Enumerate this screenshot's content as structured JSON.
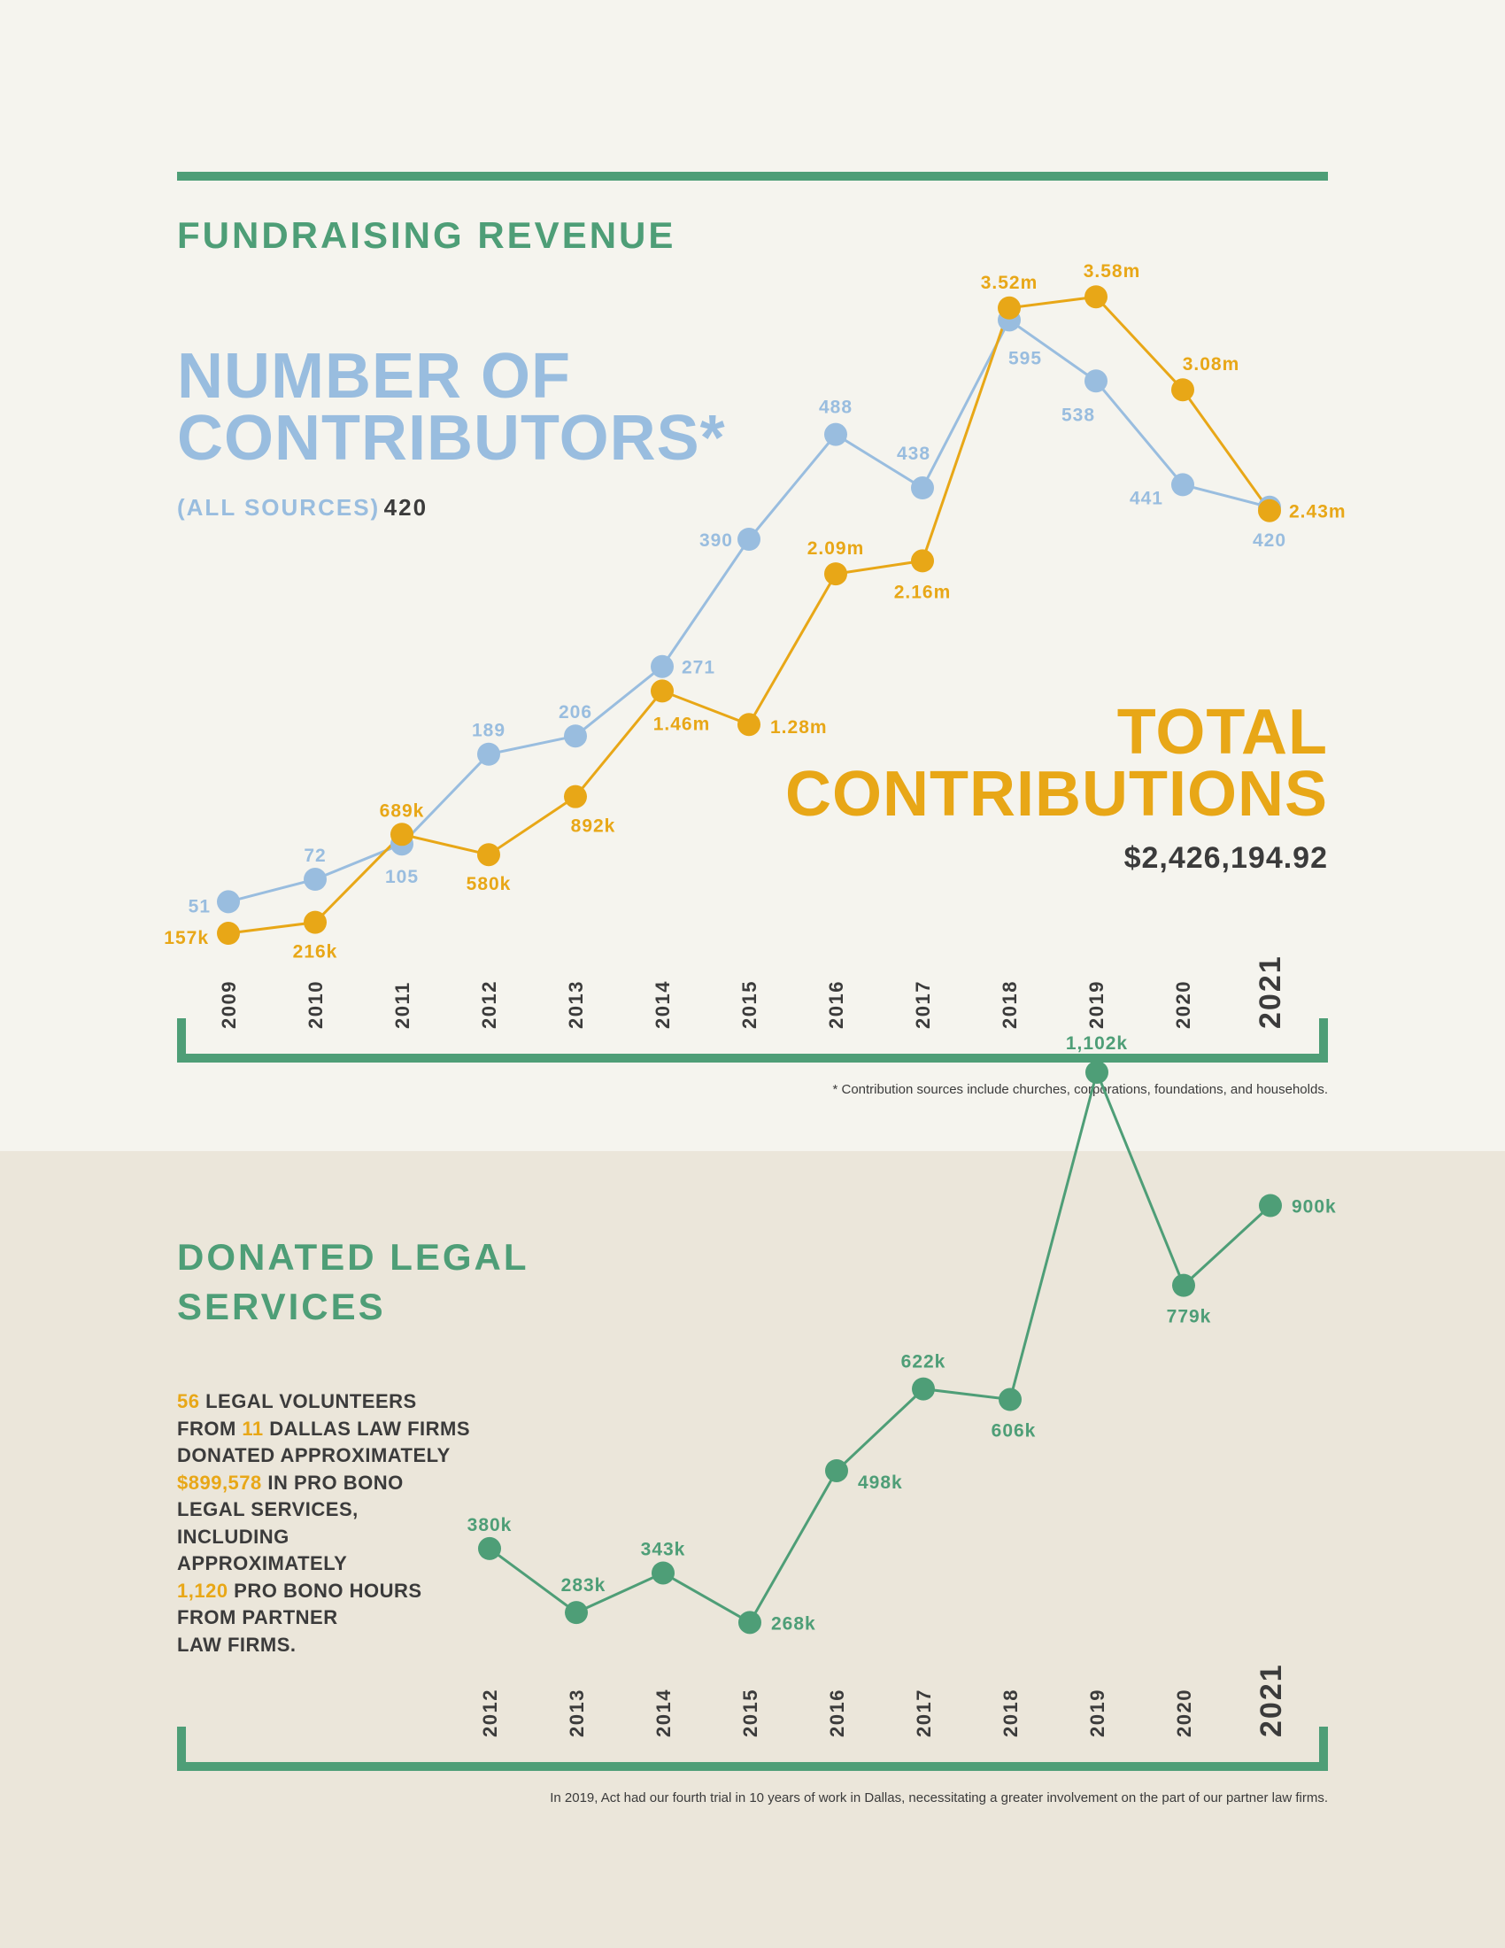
{
  "fundraising": {
    "heading": "FUNDRAISING REVENUE",
    "contributors_title_line1": "NUMBER OF",
    "contributors_title_line2": "CONTRIBUTORS*",
    "contributors_sub_label": "(ALL SOURCES)",
    "contributors_sub_value": "420",
    "total_title_line1": "TOTAL",
    "total_title_line2": "CONTRIBUTIONS",
    "total_value": "$2,426,194.92",
    "footnote": "* Contribution sources include churches, corporations, foundations, and households."
  },
  "legal": {
    "heading_line1": "DONATED LEGAL",
    "heading_line2": "SERVICES",
    "body": [
      {
        "text": "56",
        "hl": true
      },
      {
        "text": " LEGAL VOLUNTEERS",
        "hl": false
      },
      {
        "br": true
      },
      {
        "text": "FROM ",
        "hl": false
      },
      {
        "text": "11",
        "hl": true
      },
      {
        "text": " DALLAS LAW FIRMS",
        "hl": false
      },
      {
        "br": true
      },
      {
        "text": "DONATED APPROXIMATELY",
        "hl": false
      },
      {
        "br": true
      },
      {
        "text": "$899,578",
        "hl": true
      },
      {
        "text": " IN PRO BONO",
        "hl": false
      },
      {
        "br": true
      },
      {
        "text": "LEGAL SERVICES,",
        "hl": false
      },
      {
        "br": true
      },
      {
        "text": "INCLUDING",
        "hl": false
      },
      {
        "br": true
      },
      {
        "text": "APPROXIMATELY",
        "hl": false
      },
      {
        "br": true
      },
      {
        "text": "1,120",
        "hl": true
      },
      {
        "text": " PRO BONO HOURS",
        "hl": false
      },
      {
        "br": true
      },
      {
        "text": "FROM PARTNER",
        "hl": false
      },
      {
        "br": true
      },
      {
        "text": "LAW FIRMS.",
        "hl": false
      }
    ],
    "footnote": "In 2019, Act had our fourth trial in 10 years of work in Dallas, necessitating a greater involvement on the part of our partner law firms."
  },
  "colors": {
    "green": "#4e9e77",
    "blue": "#99bddf",
    "orange": "#e8a717",
    "dark": "#3b3b3b"
  },
  "chart_data": [
    {
      "type": "line",
      "title": "FUNDRAISING REVENUE",
      "categories": [
        "2009",
        "2010",
        "2011",
        "2012",
        "2013",
        "2014",
        "2015",
        "2016",
        "2017",
        "2018",
        "2019",
        "2020",
        "2021"
      ],
      "highlight_category": "2021",
      "series": [
        {
          "name": "NUMBER OF CONTRIBUTORS*",
          "color": "#99bddf",
          "values": [
            51,
            72,
            105,
            189,
            206,
            271,
            390,
            488,
            438,
            595,
            538,
            441,
            420
          ],
          "labels": [
            "51",
            "72",
            "105",
            "189",
            "206",
            "271",
            "390",
            "488",
            "438",
            "595",
            "538",
            "441",
            "420"
          ],
          "ylim": [
            0,
            650
          ]
        },
        {
          "name": "TOTAL CONTRIBUTIONS",
          "color": "#e8a717",
          "values": [
            157000,
            216000,
            689000,
            580000,
            892000,
            1460000,
            1280000,
            2090000,
            2160000,
            3520000,
            3580000,
            3080000,
            2430000
          ],
          "labels": [
            "157k",
            "216k",
            "689k",
            "580k",
            "892k",
            "1.46m",
            "1.28m",
            "2.09m",
            "2.16m",
            "3.52m",
            "3.58m",
            "3.08m",
            "2.43m"
          ],
          "ylim": [
            0,
            4000000
          ]
        }
      ]
    },
    {
      "type": "line",
      "title": "DONATED LEGAL SERVICES",
      "categories": [
        "2012",
        "2013",
        "2014",
        "2015",
        "2016",
        "2017",
        "2018",
        "2019",
        "2020",
        "2021"
      ],
      "highlight_category": "2021",
      "series": [
        {
          "name": "Donated legal services",
          "color": "#4e9e77",
          "values": [
            380000,
            283000,
            343000,
            268000,
            498000,
            622000,
            606000,
            1102000,
            779000,
            900000
          ],
          "labels": [
            "380k",
            "283k",
            "343k",
            "268k",
            "498k",
            "622k",
            "606k",
            "1,102k",
            "779k",
            "900k"
          ],
          "ylim": [
            0,
            1200000
          ]
        }
      ]
    }
  ]
}
